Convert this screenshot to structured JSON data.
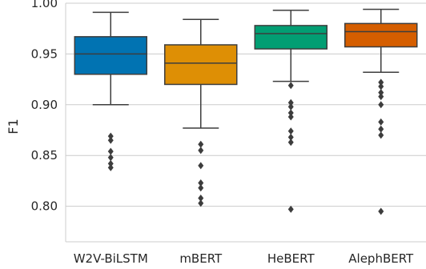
{
  "chart_data": {
    "type": "box",
    "ylabel": "F1",
    "ylim": [
      0.765,
      1.0
    ],
    "yticks": [
      0.8,
      0.85,
      0.9,
      0.95,
      1.0
    ],
    "ytick_labels": [
      "0.80",
      "0.85",
      "0.90",
      "0.95",
      "1.00"
    ],
    "grid": "horizontal",
    "categories": [
      "W2V-BiLSTM",
      "mBERT",
      "HeBERT",
      "AlephBERT"
    ],
    "colors": [
      "#0173b2",
      "#de8f05",
      "#029e73",
      "#d55e00"
    ],
    "boxes": [
      {
        "whisker_low": 0.9,
        "q1": 0.93,
        "median": 0.95,
        "q3": 0.967,
        "whisker_high": 0.991,
        "outliers": [
          0.869,
          0.865,
          0.854,
          0.848,
          0.842,
          0.838
        ]
      },
      {
        "whisker_low": 0.877,
        "q1": 0.92,
        "median": 0.941,
        "q3": 0.959,
        "whisker_high": 0.984,
        "outliers": [
          0.861,
          0.855,
          0.84,
          0.823,
          0.818,
          0.808,
          0.803
        ]
      },
      {
        "whisker_low": 0.923,
        "q1": 0.955,
        "median": 0.97,
        "q3": 0.978,
        "whisker_high": 0.993,
        "outliers": [
          0.919,
          0.902,
          0.898,
          0.892,
          0.888,
          0.874,
          0.868,
          0.863,
          0.797
        ]
      },
      {
        "whisker_low": 0.932,
        "q1": 0.957,
        "median": 0.972,
        "q3": 0.98,
        "whisker_high": 0.994,
        "outliers": [
          0.922,
          0.918,
          0.912,
          0.908,
          0.9,
          0.883,
          0.876,
          0.87,
          0.795
        ]
      }
    ]
  }
}
